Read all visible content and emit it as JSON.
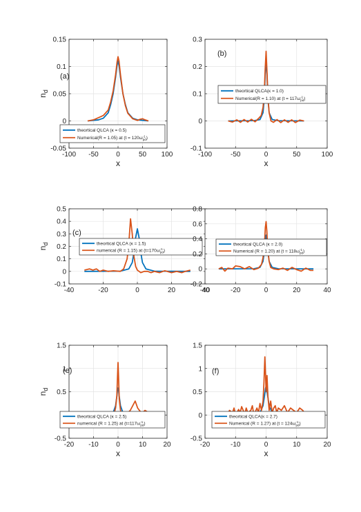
{
  "chart_data": [
    {
      "type": "line",
      "panel_label": "(a)",
      "xlabel": "x",
      "ylabel": "n_d",
      "xlim": [
        -100,
        100
      ],
      "ylim": [
        -0.05,
        0.15
      ],
      "xticks": [
        -100,
        -50,
        0,
        50,
        100
      ],
      "yticks": [
        -0.05,
        0,
        0.05,
        0.1,
        0.15
      ],
      "ytick_labels": [
        "-0.05",
        "0",
        "0.05",
        "0.1",
        "0.15"
      ],
      "grid": true,
      "legend_position": "bottom-center",
      "series": [
        {
          "legend": "theortical QLCA (κ = 0.5)",
          "color": "#0072BD",
          "x": [
            -62,
            -40,
            -30,
            -20,
            -15,
            -10,
            -5,
            -2,
            0,
            2,
            5,
            10,
            15,
            20,
            30,
            40,
            62
          ],
          "y": [
            0,
            0.002,
            0.005,
            0.015,
            0.03,
            0.05,
            0.08,
            0.102,
            0.11,
            0.102,
            0.08,
            0.05,
            0.03,
            0.015,
            0.005,
            0.002,
            0
          ]
        },
        {
          "legend_main": "Numerical(R = 1.05) at (t = 120ω",
          "legend_sup": "-1",
          "legend_sub": "pd",
          "legend_tail": ")",
          "color": "#D95319",
          "x": [
            -62,
            -50,
            -40,
            -30,
            -20,
            -15,
            -10,
            -5,
            -2,
            0,
            2,
            5,
            10,
            15,
            20,
            30,
            40,
            45,
            50,
            55,
            62
          ],
          "y": [
            0,
            0.002,
            0.006,
            0.01,
            0.02,
            0.035,
            0.055,
            0.085,
            0.108,
            0.118,
            0.11,
            0.085,
            0.05,
            0.028,
            0.014,
            0.004,
            0.001,
            0.003,
            0.004,
            0.002,
            0
          ]
        }
      ]
    },
    {
      "type": "line",
      "panel_label": "(b)",
      "xlabel": "x",
      "ylabel": "",
      "xlim": [
        -100,
        100
      ],
      "ylim": [
        -0.1,
        0.3
      ],
      "xticks": [
        -100,
        -50,
        0,
        50,
        100
      ],
      "yticks": [
        -0.1,
        0,
        0.1,
        0.2,
        0.3
      ],
      "ytick_labels": [
        "-0.1",
        "0",
        "0.1",
        "0.2",
        "0.3"
      ],
      "grid": true,
      "legend_position": "center",
      "series": [
        {
          "legend": "theortical QLCA(κ = 1.0)",
          "color": "#0072BD",
          "x": [
            -62,
            -20,
            -10,
            -5,
            -3,
            -1.5,
            0,
            1.5,
            3,
            5,
            10,
            20,
            62
          ],
          "y": [
            0,
            0.001,
            0.005,
            0.03,
            0.08,
            0.17,
            0.22,
            0.17,
            0.08,
            0.03,
            0.005,
            0.001,
            0
          ]
        },
        {
          "legend_main": "Numerical(R = 1.10) at (t = 117ω",
          "legend_sup": "-1",
          "legend_sub": "pd",
          "legend_tail": ")",
          "color": "#D95319",
          "x": [
            -62,
            -55,
            -48,
            -42,
            -36,
            -30,
            -24,
            -18,
            -12,
            -8,
            -5,
            -3,
            -1.5,
            0,
            1.5,
            3,
            5,
            8,
            12,
            18,
            24,
            30,
            36,
            42,
            48,
            55,
            62
          ],
          "y": [
            0,
            -0.004,
            0.004,
            -0.005,
            0.005,
            -0.004,
            0.006,
            -0.003,
            0.01,
            0.02,
            0.05,
            0.1,
            0.19,
            0.256,
            0.18,
            0.09,
            0.03,
            0.0,
            -0.005,
            0.005,
            -0.006,
            0.004,
            -0.005,
            0.004,
            -0.006,
            0.003,
            0
          ]
        }
      ]
    },
    {
      "type": "line",
      "panel_label": "(c)",
      "xlabel": "",
      "ylabel": "n_d",
      "xlim": [
        -40,
        40
      ],
      "ylim": [
        -0.1,
        0.5
      ],
      "xticks": [
        -40,
        -20,
        0,
        20,
        40
      ],
      "yticks": [
        -0.1,
        0,
        0.1,
        0.2,
        0.3,
        0.4,
        0.5
      ],
      "ytick_labels": [
        "-0.1",
        "0",
        "0.1",
        "0.2",
        "0.3",
        "0.4",
        "0.5"
      ],
      "grid": true,
      "legend_position": "center",
      "series": [
        {
          "legend": "theortical QLCA (κ = 1.5)",
          "color": "#0072BD",
          "x": [
            -31,
            -10,
            -5,
            -3,
            -2,
            -1,
            0,
            1,
            2,
            3,
            5,
            10,
            31
          ],
          "y": [
            0,
            0.002,
            0.02,
            0.07,
            0.15,
            0.27,
            0.34,
            0.27,
            0.15,
            0.07,
            0.02,
            0.002,
            0
          ]
        },
        {
          "legend_main": "numerical (R = 1.15) at (t=170ω",
          "legend_sup": "-1",
          "legend_sub": "pd",
          "legend_tail": ")",
          "color": "#D95319",
          "x": [
            -31,
            -28,
            -26,
            -24,
            -22,
            -20,
            -17,
            -14,
            -10,
            -8,
            -6,
            -5,
            -4,
            -3,
            -2,
            -1,
            0,
            1,
            2,
            4,
            6,
            8,
            10,
            13,
            16,
            20,
            23,
            26,
            28,
            31
          ],
          "y": [
            0.01,
            0.02,
            0.01,
            0.02,
            0.0,
            0.01,
            0.0,
            0.005,
            0.0,
            0.02,
            0.1,
            0.22,
            0.42,
            0.3,
            0.12,
            0.04,
            0.01,
            0.0,
            -0.01,
            0.0,
            0.0,
            -0.01,
            0.0,
            -0.01,
            0.005,
            -0.01,
            0.0,
            -0.01,
            0.0,
            0.01
          ]
        }
      ]
    },
    {
      "type": "line",
      "panel_label": "(d)",
      "xlabel": "",
      "ylabel": "",
      "xlim": [
        -40,
        40
      ],
      "ylim": [
        -0.2,
        0.8
      ],
      "xticks": [
        -40,
        -20,
        0,
        20,
        40
      ],
      "yticks": [
        -0.2,
        0,
        0.2,
        0.4,
        0.6,
        0.8
      ],
      "ytick_labels": [
        "-0.2",
        "0",
        "0.2",
        "0.4",
        "0.6",
        "0.8"
      ],
      "grid": true,
      "legend_position": "center",
      "series": [
        {
          "legend": "theortical QLCA (κ = 2.0)",
          "color": "#0072BD",
          "x": [
            -31,
            -8,
            -4,
            -2,
            -1,
            -0.5,
            0,
            0.5,
            1,
            2,
            4,
            8,
            31
          ],
          "y": [
            0,
            0.002,
            0.02,
            0.1,
            0.25,
            0.38,
            0.45,
            0.38,
            0.25,
            0.1,
            0.02,
            0.002,
            0
          ]
        },
        {
          "legend_main": "Numerical (R = 1.20) at (t = 118ω",
          "legend_sup": "-1",
          "legend_sub": "pd",
          "legend_tail": ")",
          "color": "#D95319",
          "x": [
            -31,
            -29,
            -27,
            -25,
            -22,
            -20,
            -17,
            -14,
            -11,
            -8,
            -5,
            -3,
            -2,
            -1,
            -0.5,
            0,
            0.5,
            1,
            2,
            3,
            5,
            8,
            11,
            14,
            17,
            20,
            23,
            26,
            29,
            31
          ],
          "y": [
            0.0,
            0.02,
            -0.03,
            0.01,
            0.0,
            0.04,
            0.03,
            0.0,
            0.03,
            -0.01,
            0.01,
            0.06,
            0.15,
            0.35,
            0.55,
            0.63,
            0.5,
            0.28,
            0.1,
            0.02,
            0.0,
            -0.01,
            0.01,
            -0.02,
            0.02,
            -0.01,
            -0.03,
            0.01,
            -0.02,
            -0.02
          ]
        }
      ]
    },
    {
      "type": "line",
      "panel_label": "(e)",
      "xlabel": "x",
      "ylabel": "n_d",
      "xlim": [
        -20,
        20
      ],
      "ylim": [
        -0.5,
        1.5
      ],
      "xticks": [
        -20,
        -10,
        0,
        10,
        20
      ],
      "yticks": [
        -0.5,
        0,
        0.5,
        1,
        1.5
      ],
      "ytick_labels": [
        "-0.5",
        "0",
        "0.5",
        "1",
        "1.5"
      ],
      "grid": true,
      "legend_position": "bottom-center",
      "series": [
        {
          "legend": "theortical QLCA (κ = 2.5)",
          "color": "#0072BD",
          "x": [
            -12.5,
            -4,
            -2,
            -1,
            -0.5,
            -0.2,
            0,
            0.2,
            0.5,
            1,
            2,
            4,
            12.5
          ],
          "y": [
            0,
            0.005,
            0.05,
            0.2,
            0.4,
            0.54,
            0.58,
            0.54,
            0.4,
            0.2,
            0.05,
            0.005,
            0
          ]
        },
        {
          "legend_main": "numerical (R = 1.25) at (t=117ω",
          "legend_sup": "-1",
          "legend_sub": "pd",
          "legend_tail": ")",
          "color": "#D95319",
          "x": [
            -12.5,
            -11,
            -10,
            -9,
            -8,
            -7,
            -6,
            -5,
            -4,
            -3,
            -2,
            -1.5,
            -1,
            -0.5,
            -0.2,
            0,
            0.2,
            0.5,
            1,
            1.5,
            2,
            3,
            4,
            5,
            6,
            7,
            8,
            9,
            10,
            11,
            12.5
          ],
          "y": [
            0.02,
            0.0,
            0.03,
            0.0,
            0.02,
            0.0,
            0.01,
            0.03,
            0.0,
            0.02,
            0.0,
            0.05,
            0.15,
            0.4,
            0.85,
            1.13,
            0.85,
            0.35,
            0.1,
            0.02,
            0.03,
            0.02,
            0.05,
            0.1,
            0.2,
            0.3,
            0.15,
            0.08,
            0.05,
            0.1,
            0.05
          ]
        }
      ]
    },
    {
      "type": "line",
      "panel_label": "(f)",
      "xlabel": "x",
      "ylabel": "",
      "xlim": [
        -20,
        20
      ],
      "ylim": [
        -0.5,
        1.5
      ],
      "xticks": [
        -20,
        -10,
        0,
        10,
        20
      ],
      "yticks": [
        -0.5,
        0,
        0.5,
        1,
        1.5
      ],
      "ytick_labels": [
        "-0.5",
        "0",
        "0.5",
        "1",
        "1.5"
      ],
      "grid": true,
      "legend_position": "bottom-center",
      "series": [
        {
          "legend": "theortical QLCA(κ = 2.7)",
          "color": "#0072BD",
          "x": [
            -12.5,
            -4,
            -2,
            -1,
            -0.5,
            -0.2,
            0,
            0.2,
            0.5,
            1,
            2,
            4,
            12.5
          ],
          "y": [
            0,
            0.005,
            0.05,
            0.2,
            0.42,
            0.57,
            0.62,
            0.57,
            0.42,
            0.2,
            0.05,
            0.005,
            0
          ]
        },
        {
          "legend_main": "Numerical (R = 1.27) at (t = 124ω",
          "legend_sup": "-1",
          "legend_sub": "pd",
          "legend_tail": ")",
          "color": "#D95319",
          "x": [
            -12.5,
            -12,
            -11,
            -10.5,
            -10,
            -9,
            -8.5,
            -8,
            -7,
            -6.5,
            -6,
            -5,
            -4.5,
            -4,
            -3,
            -2.5,
            -2,
            -1.5,
            -1,
            -0.7,
            -0.4,
            -0.2,
            0,
            0.3,
            0.6,
            1,
            1.5,
            2,
            2.5,
            3,
            3.5,
            4,
            5,
            6,
            7,
            8,
            9,
            10,
            11,
            12,
            12.5
          ],
          "y": [
            0.0,
            0.1,
            0.05,
            0.15,
            0.0,
            0.12,
            0.05,
            0.18,
            0.02,
            0.15,
            0.05,
            0.1,
            0.2,
            0.0,
            0.15,
            0.05,
            0.25,
            0.1,
            0.3,
            0.7,
            1.25,
            0.9,
            0.5,
            0.85,
            0.4,
            0.1,
            0.3,
            0.05,
            0.15,
            0.2,
            0.05,
            0.15,
            0.1,
            0.2,
            0.05,
            0.15,
            0.1,
            0.05,
            0.15,
            0.1,
            0.05
          ]
        }
      ]
    }
  ]
}
